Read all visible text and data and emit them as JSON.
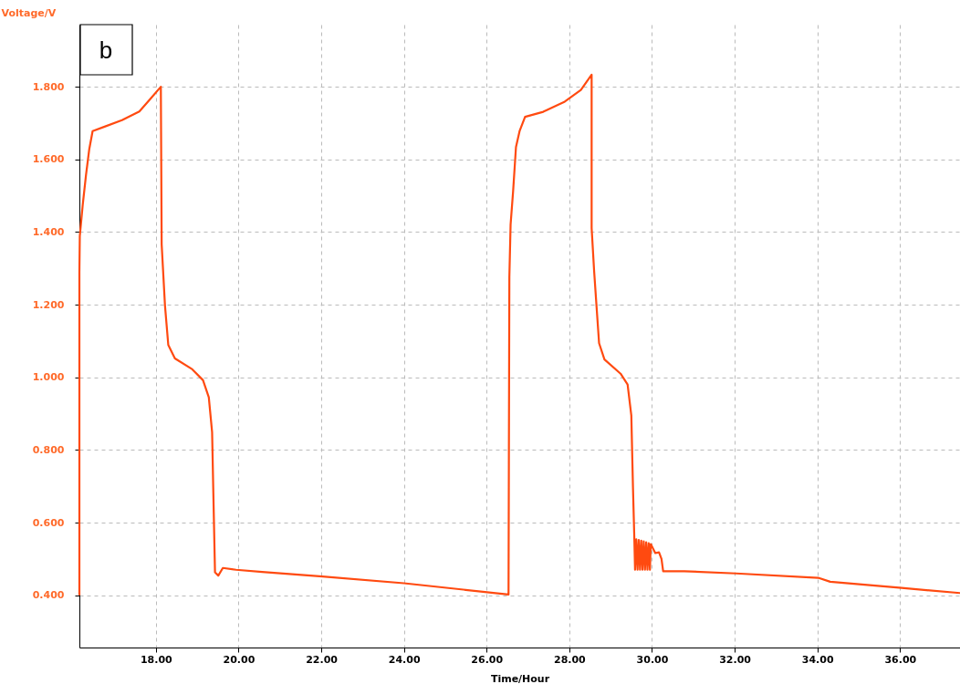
{
  "chart_data": {
    "type": "line",
    "xlabel": "Time/Hour",
    "ylabel": "Voltage/V",
    "annotations": [
      "b"
    ],
    "grid": true,
    "line_style": "solid",
    "xlim": [
      16.15,
      37.45
    ],
    "ylim": [
      0.256,
      1.971
    ],
    "xticks": [
      {
        "value": 18,
        "label": "18.00"
      },
      {
        "value": 20,
        "label": "20.00"
      },
      {
        "value": 22,
        "label": "22.00"
      },
      {
        "value": 24,
        "label": "24.00"
      },
      {
        "value": 26,
        "label": "26.00"
      },
      {
        "value": 28,
        "label": "28.00"
      },
      {
        "value": 30,
        "label": "30.00"
      },
      {
        "value": 32,
        "label": "32.00"
      },
      {
        "value": 34,
        "label": "34.00"
      },
      {
        "value": 36,
        "label": "36.00"
      }
    ],
    "yticks": [
      {
        "value": 0.4,
        "label": "0.400"
      },
      {
        "value": 0.6,
        "label": "0.600"
      },
      {
        "value": 0.8,
        "label": "0.800"
      },
      {
        "value": 1.0,
        "label": "1.000"
      },
      {
        "value": 1.2,
        "label": "1.200"
      },
      {
        "value": 1.4,
        "label": "1.400"
      },
      {
        "value": 1.6,
        "label": "1.600"
      },
      {
        "value": 1.8,
        "label": "1.800"
      }
    ],
    "series": [
      {
        "color": "#ff4a10",
        "x": [
          16.15,
          16.15,
          16.16,
          16.23,
          16.31,
          16.39,
          16.47,
          16.76,
          17.18,
          17.6,
          17.87,
          18.12,
          18.14,
          18.22,
          18.3,
          18.46,
          18.88,
          19.14,
          19.28,
          19.36,
          19.39,
          19.43,
          19.51,
          19.62,
          19.94,
          20.57,
          21.96,
          24.0,
          26.53,
          26.55,
          26.58,
          26.64,
          26.71,
          26.8,
          26.93,
          27.37,
          27.89,
          28.28,
          28.54,
          28.54,
          28.6,
          28.66,
          28.72,
          28.85,
          29.24,
          29.41,
          29.5,
          29.54,
          29.57,
          29.59,
          29.62,
          29.65,
          29.68,
          29.71,
          29.74,
          29.77,
          29.8,
          29.83,
          29.86,
          29.89,
          29.92,
          29.95,
          29.97,
          30.08,
          30.17,
          30.23,
          30.27,
          30.78,
          32.03,
          34.02,
          34.31,
          36.04,
          37.45
        ],
        "values": [
          0.4,
          1.29,
          1.389,
          1.474,
          1.557,
          1.629,
          1.678,
          1.69,
          1.708,
          1.732,
          1.767,
          1.8,
          1.366,
          1.198,
          1.089,
          1.052,
          1.022,
          0.992,
          0.945,
          0.849,
          0.681,
          0.463,
          0.454,
          0.475,
          0.47,
          0.464,
          0.452,
          0.433,
          0.402,
          1.277,
          1.421,
          1.511,
          1.634,
          1.679,
          1.717,
          1.731,
          1.759,
          1.791,
          1.833,
          1.411,
          1.293,
          1.193,
          1.094,
          1.049,
          1.01,
          0.98,
          0.895,
          0.696,
          0.568,
          0.47,
          0.554,
          0.47,
          0.552,
          0.47,
          0.55,
          0.47,
          0.548,
          0.47,
          0.546,
          0.47,
          0.543,
          0.47,
          0.541,
          0.516,
          0.518,
          0.5,
          0.466,
          0.466,
          0.46,
          0.448,
          0.437,
          0.42,
          0.406
        ]
      }
    ]
  }
}
